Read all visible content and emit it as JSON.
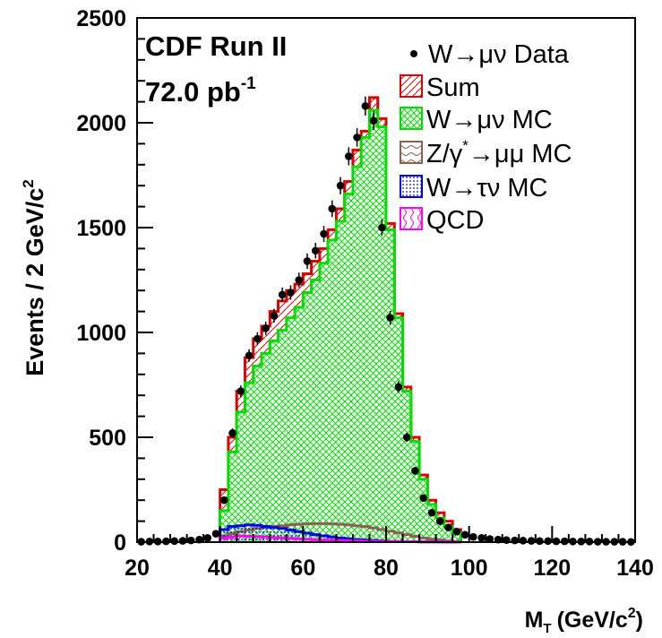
{
  "chart_data": {
    "type": "histogram",
    "experiment": "CDF Run II",
    "luminosity": "72.0 pb",
    "luminosity_exp": "-1",
    "xlabel": "M",
    "xlabel_sub": "T",
    "xlabel_unit": "(GeV/c",
    "xlabel_unit_exp": "2",
    "xlabel_close": ")",
    "ylabel": "Events / 2 GeV/c",
    "ylabel_exp": "2",
    "xlim": [
      20,
      140
    ],
    "ylim": [
      0,
      2500
    ],
    "x_ticks": [
      "20",
      "40",
      "60",
      "80",
      "100",
      "120",
      "140"
    ],
    "y_ticks": [
      "0",
      "500",
      "1000",
      "1500",
      "2000",
      "2500"
    ],
    "bin_width": 2,
    "bin_start": 40,
    "legend": {
      "data": "W→μν Data",
      "sum": "Sum",
      "wmunu": "W→μν MC",
      "zmumu_a": "Z/γ",
      "zmumu_star": "*",
      "zmumu_b": "→μμ MC",
      "wtaunu": "W→τν MC",
      "qcd": "QCD"
    },
    "colors": {
      "sum": "#e00000",
      "wmunu": "#00e000",
      "zmumu": "#8b6050",
      "wtaunu": "#0000ee",
      "qcd": "#ff00ff",
      "data": "#000000"
    },
    "series": [
      {
        "name": "Sum",
        "values": [
          250,
          500,
          720,
          880,
          970,
          1030,
          1100,
          1150,
          1200,
          1230,
          1280,
          1340,
          1400,
          1490,
          1590,
          1720,
          1870,
          1960,
          2120,
          2020,
          1520,
          1090,
          740,
          500,
          320,
          200,
          140,
          100,
          60
        ]
      },
      {
        "name": "W→μν MC",
        "values": [
          150,
          430,
          620,
          760,
          840,
          900,
          960,
          1010,
          1070,
          1120,
          1190,
          1250,
          1330,
          1440,
          1530,
          1660,
          1790,
          1930,
          2060,
          1980,
          1490,
          1070,
          720,
          480,
          300,
          180,
          115,
          75,
          45
        ]
      },
      {
        "name": "Z/γ*→μμ MC",
        "values": [
          30,
          40,
          50,
          58,
          65,
          70,
          75,
          78,
          82,
          85,
          87,
          88,
          88,
          87,
          85,
          82,
          78,
          74,
          68,
          60,
          52,
          44,
          36,
          28,
          20,
          14,
          10,
          6,
          3
        ]
      },
      {
        "name": "W→τν MC",
        "values": [
          60,
          75,
          78,
          82,
          80,
          75,
          70,
          65,
          58,
          50,
          43,
          36,
          30,
          25,
          20,
          16,
          12,
          10,
          8,
          6,
          4,
          3,
          2,
          2,
          1,
          1,
          1,
          0,
          0
        ]
      },
      {
        "name": "QCD",
        "values": [
          20,
          25,
          30,
          28,
          26,
          24,
          22,
          20,
          18,
          16,
          14,
          12,
          10,
          9,
          8,
          7,
          6,
          5,
          4,
          4,
          3,
          3,
          2,
          2,
          1,
          1,
          1,
          0,
          0
        ]
      }
    ],
    "data_points": {
      "x": [
        21,
        23,
        25,
        27,
        29,
        31,
        33,
        35,
        37,
        39,
        41,
        43,
        45,
        47,
        49,
        51,
        53,
        55,
        57,
        59,
        61,
        63,
        65,
        67,
        69,
        71,
        73,
        75,
        77,
        79,
        81,
        83,
        85,
        87,
        89,
        91,
        93,
        95,
        97,
        99,
        101,
        103,
        105,
        107,
        109,
        111,
        113,
        115,
        117,
        119,
        121,
        123,
        125,
        127,
        129,
        131,
        133,
        135,
        137,
        139
      ],
      "y": [
        2,
        3,
        3,
        4,
        5,
        6,
        8,
        12,
        20,
        40,
        200,
        520,
        720,
        890,
        970,
        1020,
        1080,
        1180,
        1190,
        1250,
        1340,
        1390,
        1470,
        1590,
        1700,
        1840,
        1930,
        2080,
        2010,
        1500,
        1070,
        740,
        500,
        340,
        210,
        140,
        100,
        70,
        50,
        35,
        25,
        20,
        15,
        12,
        10,
        8,
        7,
        6,
        5,
        5,
        4,
        4,
        3,
        3,
        3,
        2,
        2,
        2,
        2,
        1
      ]
    }
  }
}
